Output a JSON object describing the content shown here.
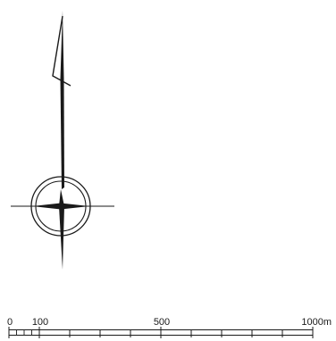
{
  "map": {
    "north_arrow": {
      "semantic": "north-arrow-icon"
    },
    "compass": {
      "semantic": "compass-rose-icon"
    },
    "scale_bar": {
      "labels": {
        "zero": "0",
        "hundred": "100",
        "five_hundred": "500",
        "thousand": "1000m"
      },
      "values": [
        0,
        100,
        500,
        1000
      ],
      "max_value": 1000,
      "unit": "m"
    },
    "colors": {
      "ink": "#1a1a1a"
    }
  }
}
